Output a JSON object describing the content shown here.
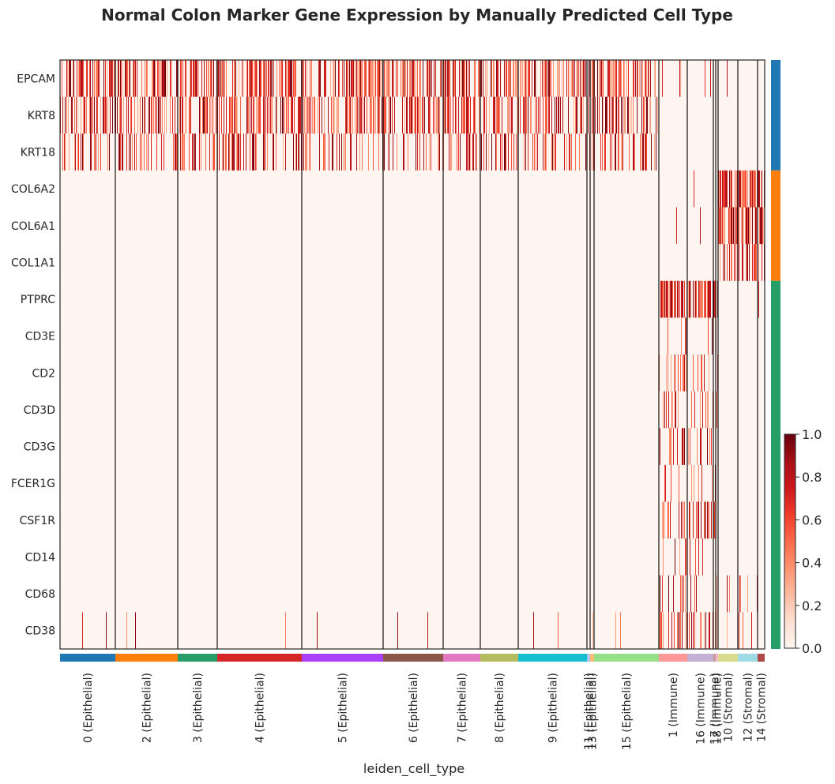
{
  "chart_data": {
    "type": "heatmap",
    "title": "Normal Colon Marker Gene Expression by Manually Predicted Cell Type",
    "xlabel": "leiden_cell_type",
    "ylabel": "",
    "colormap": "Reds",
    "colorbar": {
      "min": 0.0,
      "max": 1.0,
      "ticks": [
        "0.0",
        "0.2",
        "0.4",
        "0.6",
        "0.8",
        "1.0"
      ]
    },
    "genes": [
      "EPCAM",
      "KRT8",
      "KRT18",
      "COL6A2",
      "COL6A1",
      "COL1A1",
      "PTPRC",
      "CD3E",
      "CD2",
      "CD3D",
      "CD3G",
      "FCER1G",
      "CSF1R",
      "CD14",
      "CD68",
      "CD38"
    ],
    "gene_groups": [
      {
        "genes": [
          "EPCAM",
          "KRT8",
          "KRT18"
        ],
        "color": "#1f77b4"
      },
      {
        "genes": [
          "COL6A2",
          "COL6A1",
          "COL1A1"
        ],
        "color": "#ff7f0e"
      },
      {
        "genes": [
          "PTPRC",
          "CD3E",
          "CD2",
          "CD3D",
          "CD3G",
          "FCER1G",
          "CSF1R",
          "CD14",
          "CD68",
          "CD38"
        ],
        "color": "#279e68"
      }
    ],
    "groups": [
      {
        "label": "0 (Epithelial)",
        "cells": 70,
        "color": "#1f77b4",
        "category": "Epithelial"
      },
      {
        "label": "2 (Epithelial)",
        "cells": 79,
        "color": "#ff7f0e",
        "category": "Epithelial"
      },
      {
        "label": "3 (Epithelial)",
        "cells": 50,
        "color": "#279e68",
        "category": "Epithelial"
      },
      {
        "label": "4 (Epithelial)",
        "cells": 107,
        "color": "#d62728",
        "category": "Epithelial"
      },
      {
        "label": "5 (Epithelial)",
        "cells": 103,
        "color": "#aa40fc",
        "category": "Epithelial"
      },
      {
        "label": "6 (Epithelial)",
        "cells": 76,
        "color": "#8c564b",
        "category": "Epithelial"
      },
      {
        "label": "7 (Epithelial)",
        "cells": 47,
        "color": "#e377c2",
        "category": "Epithelial"
      },
      {
        "label": "8 (Epithelial)",
        "cells": 48,
        "color": "#b5bd61",
        "category": "Epithelial"
      },
      {
        "label": "9 (Epithelial)",
        "cells": 87,
        "color": "#17becf",
        "category": "Epithelial"
      },
      {
        "label": "11 (Epithelial)",
        "cells": 4,
        "color": "#aec7e8",
        "category": "Epithelial"
      },
      {
        "label": "13 (Epithelial)",
        "cells": 5,
        "color": "#ffbb78",
        "category": "Epithelial"
      },
      {
        "label": "15 (Epithelial)",
        "cells": 82,
        "color": "#98df8a",
        "category": "Epithelial"
      },
      {
        "label": "1 (Immune)",
        "cells": 36,
        "color": "#ff9896",
        "category": "Immune"
      },
      {
        "label": "16 (Immune)",
        "cells": 33,
        "color": "#c5b0d5",
        "category": "Immune"
      },
      {
        "label": "17 (Immune)",
        "cells": 3,
        "color": "#c49c94",
        "category": "Immune"
      },
      {
        "label": "18 (Immune)",
        "cells": 3,
        "color": "#f7b6d2",
        "category": "Immune"
      },
      {
        "label": "10 (Stromal)",
        "cells": 25,
        "color": "#dbdb8d",
        "category": "Stromal"
      },
      {
        "label": "12 (Stromal)",
        "cells": 25,
        "color": "#9edae5",
        "category": "Stromal"
      },
      {
        "label": "14 (Stromal)",
        "cells": 9,
        "color": "#ad494a",
        "category": "Stromal"
      }
    ],
    "expression_profile": {
      "Epithelial": {
        "EPCAM": 0.55,
        "KRT8": 0.45,
        "KRT18": 0.3,
        "COL6A2": 0.0,
        "COL6A1": 0.0,
        "COL1A1": 0.0,
        "PTPRC": 0.0,
        "CD3E": 0.0,
        "CD2": 0.0,
        "CD3D": 0.0,
        "CD3G": 0.0,
        "FCER1G": 0.0,
        "CSF1R": 0.0,
        "CD14": 0.0,
        "CD68": 0.0,
        "CD38": 0.02
      },
      "Immune": {
        "EPCAM": 0.03,
        "KRT8": 0.0,
        "KRT18": 0.0,
        "COL6A2": 0.02,
        "COL6A1": 0.02,
        "COL1A1": 0.0,
        "PTPRC": 0.75,
        "CD3E": 0.1,
        "CD2": 0.25,
        "CD3D": 0.2,
        "CD3G": 0.2,
        "FCER1G": 0.2,
        "CSF1R": 0.3,
        "CD14": 0.15,
        "CD68": 0.15,
        "CD38": 0.3
      },
      "Stromal": {
        "EPCAM": 0.05,
        "KRT8": 0.0,
        "KRT18": 0.0,
        "COL6A2": 0.7,
        "COL6A1": 0.7,
        "COL1A1": 0.4,
        "PTPRC": 0.02,
        "CD3E": 0.0,
        "CD2": 0.0,
        "CD3D": 0.0,
        "CD3G": 0.0,
        "FCER1G": 0.0,
        "CSF1R": 0.02,
        "CD14": 0.0,
        "CD68": 0.05,
        "CD38": 0.05
      }
    },
    "grid": false,
    "legend": "right"
  }
}
